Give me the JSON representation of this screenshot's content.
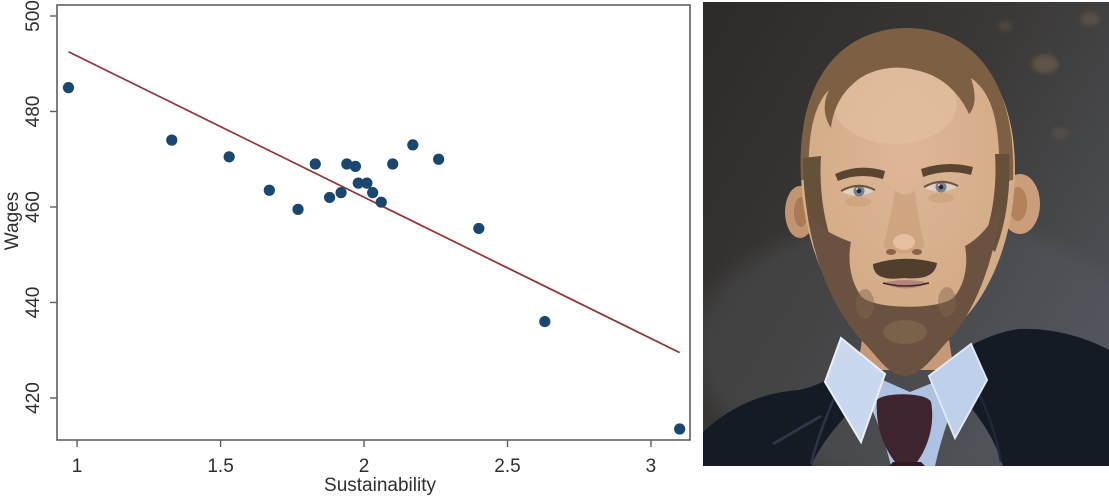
{
  "chart_data": {
    "type": "scatter",
    "title": "",
    "xlabel": "Sustainability",
    "ylabel": "Wages",
    "x_ticks": [
      1,
      1.5,
      2,
      2.5,
      3
    ],
    "y_ticks": [
      420,
      440,
      460,
      480,
      500
    ],
    "xlim": [
      0.93,
      3.136
    ],
    "ylim": [
      411.2,
      502.3
    ],
    "grid": false,
    "legend": "none",
    "points": [
      [
        0.97,
        485
      ],
      [
        1.33,
        474
      ],
      [
        1.53,
        470.5
      ],
      [
        1.67,
        463.5
      ],
      [
        1.77,
        459.5
      ],
      [
        1.83,
        469
      ],
      [
        1.88,
        462
      ],
      [
        1.92,
        463
      ],
      [
        1.94,
        469
      ],
      [
        1.97,
        468.5
      ],
      [
        1.98,
        465
      ],
      [
        2.01,
        465
      ],
      [
        2.03,
        463
      ],
      [
        2.06,
        461
      ],
      [
        2.1,
        469
      ],
      [
        2.17,
        473
      ],
      [
        2.26,
        470
      ],
      [
        2.4,
        455.5
      ],
      [
        2.63,
        436
      ],
      [
        3.1,
        413.5
      ]
    ],
    "fit_line": {
      "x1": 0.97,
      "y1": 492.5,
      "x2": 3.1,
      "y2": 429.5
    },
    "marker_radius": 5.6,
    "colors": {
      "point": "#1a476f",
      "fit_line": "#90353b",
      "axis": "#5f5f5f",
      "tick_text": "#2f2f2f",
      "plot_bg": "#ffffff"
    }
  },
  "photo": {
    "alt": "Head-and-shoulders portrait of a man with short receding brown hair and a full beard, wearing a dark suit jacket, light blue shirt and dark red tie against a dark chalkboard background",
    "colors": {
      "background": "#3a3836",
      "smudge": "#7a6450",
      "skin": "#d8b294",
      "neck": "#c69a79",
      "hair": "#7d6044",
      "beard": "#6b5240",
      "shirt": "#aec3e2",
      "collar": "#c9d8ee",
      "jacket": "#151b25",
      "tie": "#3f2330"
    }
  }
}
